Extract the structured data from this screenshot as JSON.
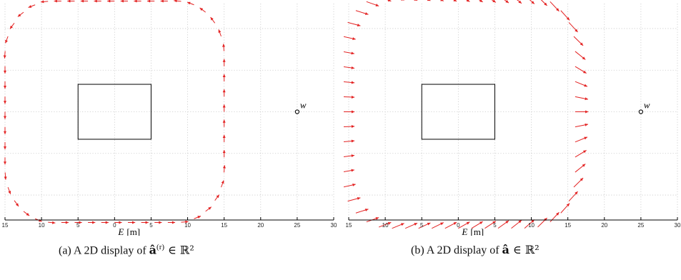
{
  "chart_data": [
    {
      "type": "scatter",
      "panel_id": "a",
      "xlabel": "E",
      "xunit": "[m]",
      "xlim": [
        -15,
        30
      ],
      "ylim": [
        -13,
        13
      ],
      "x_ticks": [
        -15,
        -10,
        -5,
        0,
        5,
        10,
        15,
        20,
        25,
        30
      ],
      "x_tick_labels": [
        "15",
        "10",
        "5",
        "0",
        "5",
        "10",
        "15",
        "20",
        "25",
        "30"
      ],
      "y_grid": [
        -10,
        -5,
        0,
        5,
        10
      ],
      "grid": true,
      "obstacle": {
        "x": [
          -5,
          5
        ],
        "y": [
          -3.3,
          3.3
        ]
      },
      "w_point": {
        "label": "w",
        "x": 25,
        "y": 0
      },
      "trajectory": {
        "half_width": 15,
        "half_height": 13.3,
        "corner_radius": 6.5,
        "arrow_count": 56,
        "arrow_length": 1.0,
        "direction": "tangent"
      },
      "caption": {
        "prefix": "(a)  A 2D display of ",
        "symbol": "â",
        "superscript": "(r)",
        "suffix": " ∈ ℝ²"
      }
    },
    {
      "type": "scatter",
      "panel_id": "b",
      "xlabel": "E",
      "xunit": "[m]",
      "xlim": [
        -15,
        30
      ],
      "ylim": [
        -13,
        13
      ],
      "x_ticks": [
        -15,
        -10,
        -5,
        0,
        5,
        10,
        15,
        20,
        25,
        30
      ],
      "x_tick_labels": [
        "15",
        "10",
        "5",
        "0",
        "5",
        "10",
        "15",
        "20",
        "25",
        "30"
      ],
      "y_grid": [
        -10,
        -5,
        0,
        5,
        10
      ],
      "grid": true,
      "obstacle": {
        "x": [
          -5,
          5
        ],
        "y": [
          -3.3,
          3.3
        ]
      },
      "w_point": {
        "label": "w",
        "x": 25,
        "y": 0
      },
      "trajectory": {
        "half_width": 16,
        "half_height": 14.0,
        "corner_radius": 6.5,
        "arrow_count": 60,
        "arrow_length": 1.8,
        "direction": "toward-w"
      },
      "caption": {
        "prefix": "(b)  A 2D display of ",
        "symbol": "â",
        "superscript": "",
        "suffix": " ∈ ℝ²"
      }
    }
  ]
}
